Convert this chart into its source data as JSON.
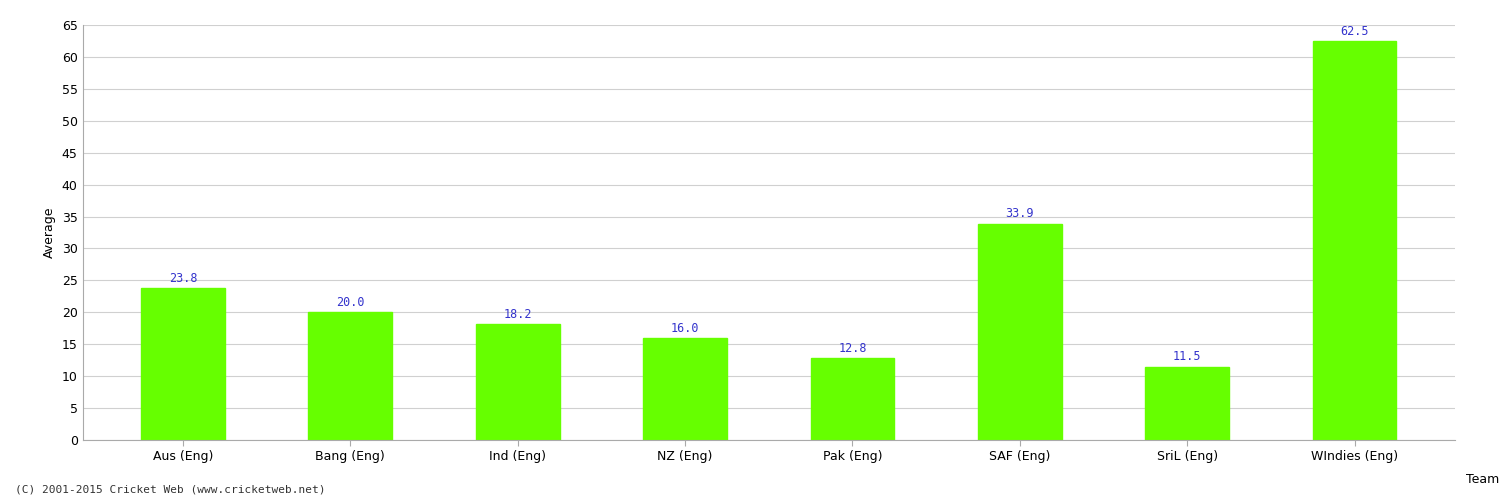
{
  "title": "",
  "xlabel": "Team",
  "ylabel": "Average",
  "categories": [
    "Aus (Eng)",
    "Bang (Eng)",
    "Ind (Eng)",
    "NZ (Eng)",
    "Pak (Eng)",
    "SAF (Eng)",
    "SriL (Eng)",
    "WIndies (Eng)"
  ],
  "values": [
    23.8,
    20.0,
    18.2,
    16.0,
    12.8,
    33.9,
    11.5,
    62.5
  ],
  "bar_color": "#66ff00",
  "label_color": "#3333cc",
  "ylim": [
    0,
    65
  ],
  "yticks": [
    0,
    5,
    10,
    15,
    20,
    25,
    30,
    35,
    40,
    45,
    50,
    55,
    60,
    65
  ],
  "background_color": "#ffffff",
  "grid_color": "#d0d0d0",
  "footer": "(C) 2001-2015 Cricket Web (www.cricketweb.net)",
  "tick_fontsize": 9,
  "value_fontsize": 8.5,
  "xlabel_fontsize": 9,
  "ylabel_fontsize": 9
}
